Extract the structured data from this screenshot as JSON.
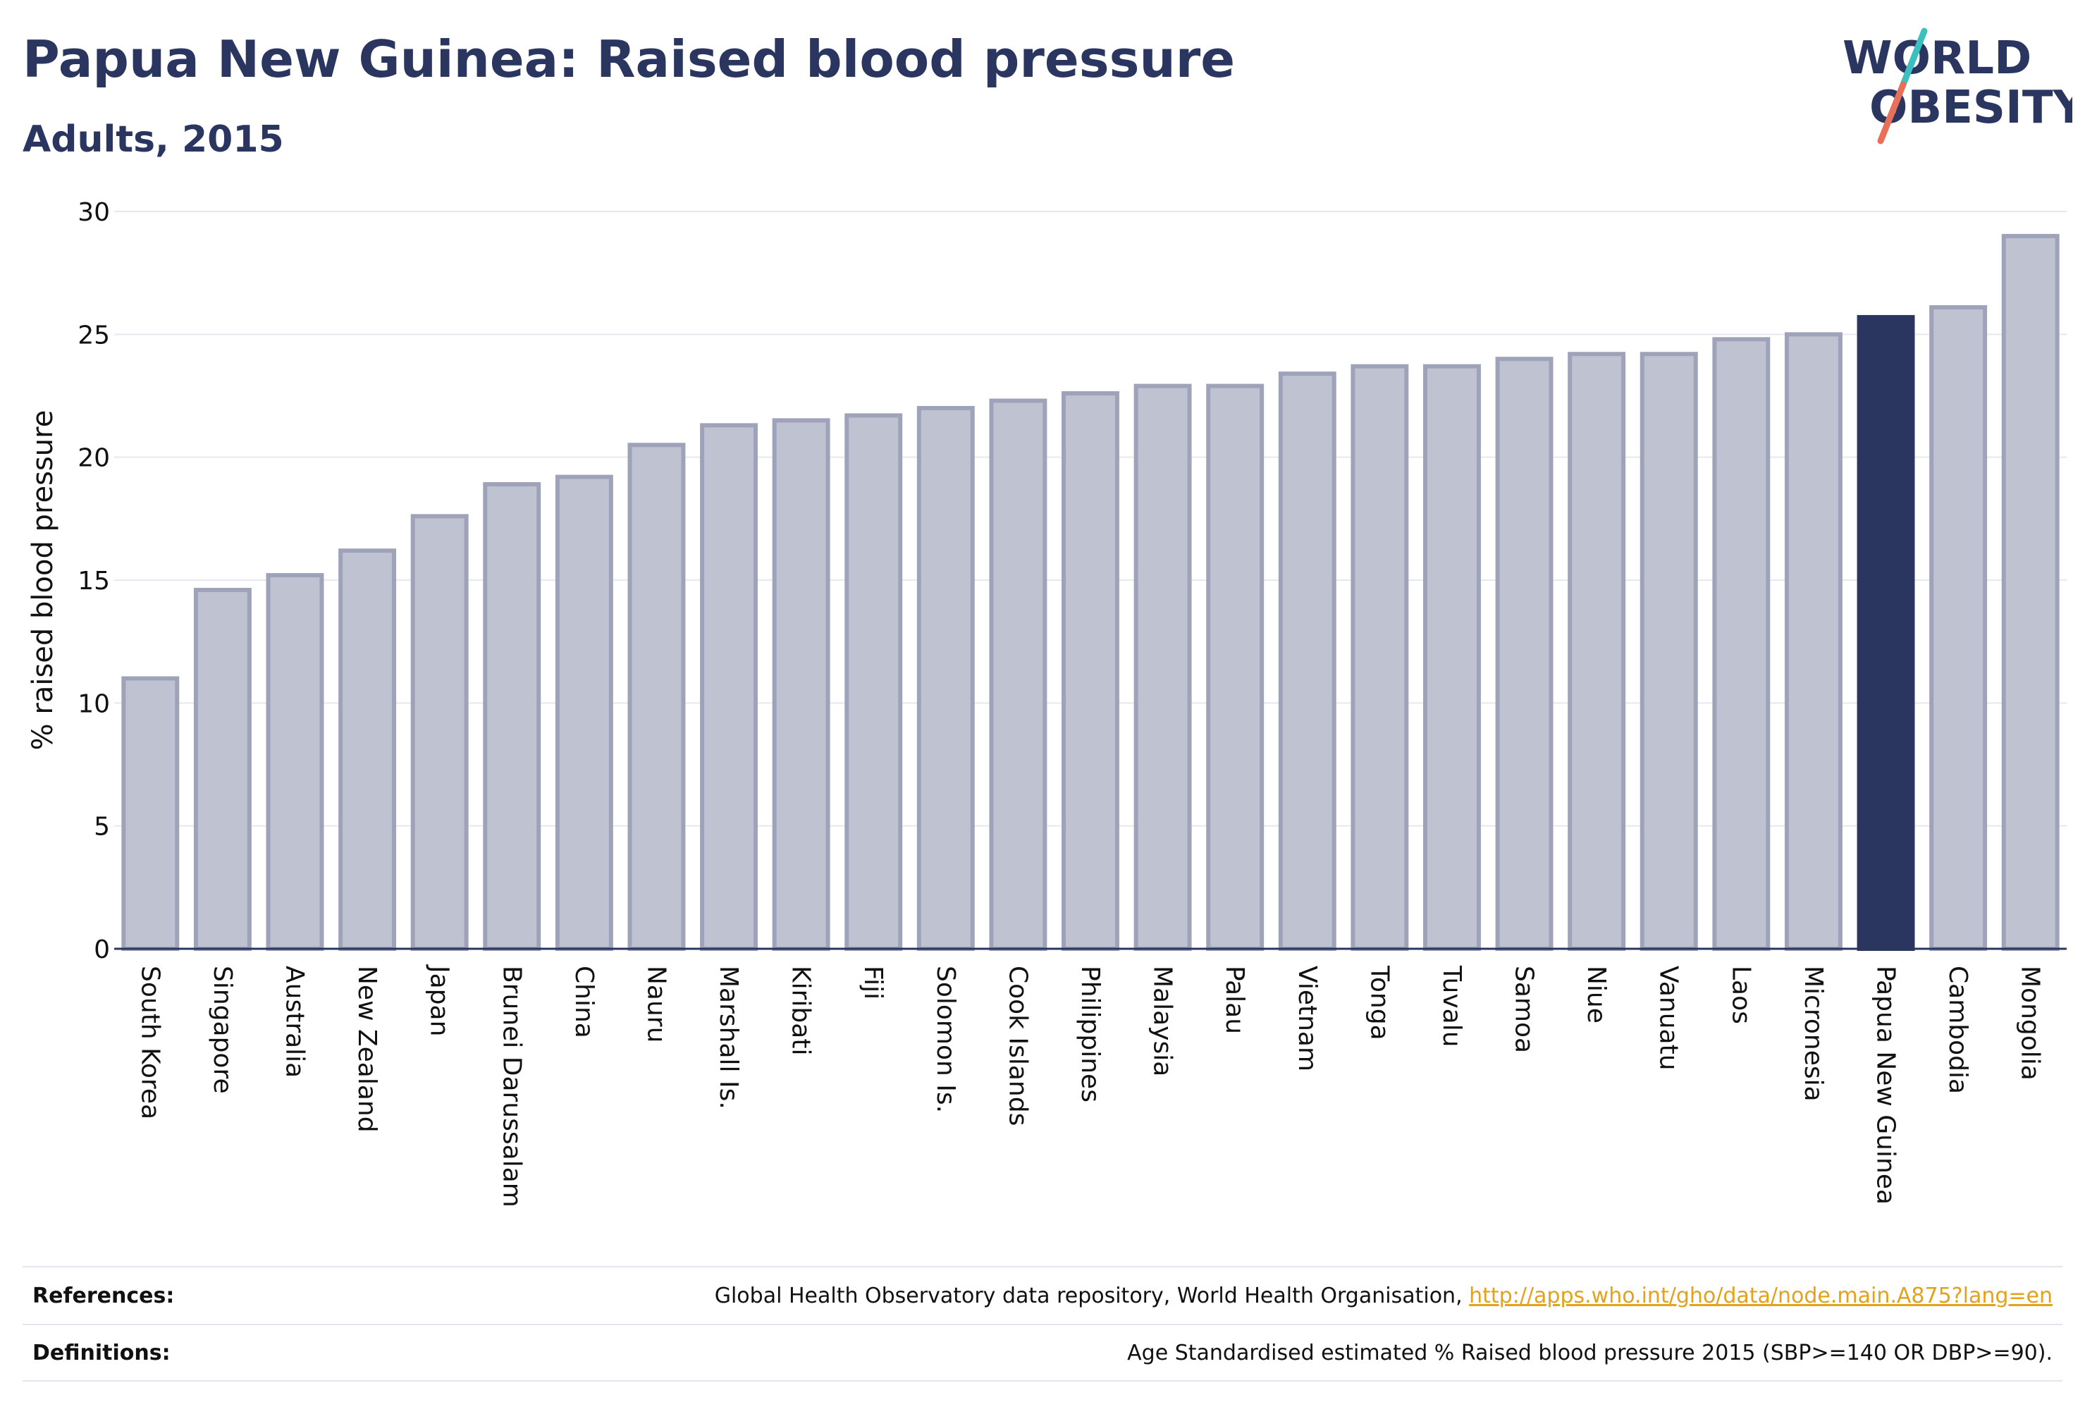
{
  "header": {
    "title": "Papua New Guinea: Raised blood pressure",
    "subtitle": "Adults, 2015"
  },
  "logo": {
    "line1": "WORLD",
    "line2": "OBESITY",
    "accent_colors": [
      "#3bbfbf",
      "#e8705a"
    ],
    "text_color": "#2b3660"
  },
  "chart_data": {
    "type": "bar",
    "title": "Papua New Guinea: Raised blood pressure",
    "subtitle": "Adults, 2015",
    "xlabel": "",
    "ylabel": "% raised blood pressure",
    "ylim": [
      0,
      30
    ],
    "yticks": [
      0,
      5,
      10,
      15,
      20,
      25,
      30
    ],
    "grid": true,
    "highlight": "Papua New Guinea",
    "colors": {
      "bar": "#bfc2d0",
      "bar_border": "#9ea3ba",
      "highlight": "#2b3660",
      "grid": "#e6e8ef",
      "axis": "#2b3660"
    },
    "categories": [
      "South Korea",
      "Singapore",
      "Australia",
      "New Zealand",
      "Japan",
      "Brunei Darussalam",
      "China",
      "Nauru",
      "Marshall Is.",
      "Kiribati",
      "Fiji",
      "Solomon Is.",
      "Cook Islands",
      "Philippines",
      "Malaysia",
      "Palau",
      "Vietnam",
      "Tonga",
      "Tuvalu",
      "Samoa",
      "Niue",
      "Vanuatu",
      "Laos",
      "Micronesia",
      "Papua New Guinea",
      "Cambodia",
      "Mongolia"
    ],
    "values": [
      11.0,
      14.6,
      15.2,
      16.2,
      17.6,
      18.9,
      19.2,
      20.5,
      21.3,
      21.5,
      21.7,
      22.0,
      22.3,
      22.6,
      22.9,
      22.9,
      23.4,
      23.7,
      23.7,
      24.0,
      24.2,
      24.2,
      24.8,
      25.0,
      25.7,
      26.1,
      29.0
    ]
  },
  "footer": {
    "references_label": "References:",
    "references_text": "Global Health Observatory data repository, World Health Organisation, ",
    "references_link": "http://apps.who.int/gho/data/node.main.A875?lang=en",
    "definitions_label": "Definitions:",
    "definitions_text": "Age Standardised estimated % Raised blood pressure 2015 (SBP>=140 OR DBP>=90)."
  }
}
